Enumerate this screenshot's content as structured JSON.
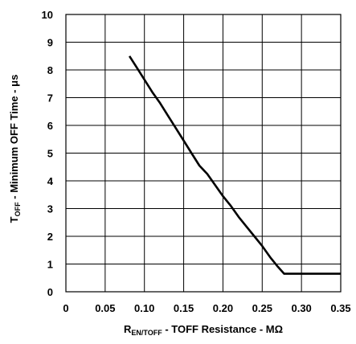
{
  "chart_data": {
    "type": "line",
    "xlabel": {
      "main": "R",
      "sub": "EN/TOFF",
      "rest": " - TOFF Resistance -  MΩ"
    },
    "ylabel": {
      "main": "T",
      "sub": "OFF",
      "rest": " - Minimum OFF Time - μs"
    },
    "xlim": [
      0,
      0.35
    ],
    "ylim": [
      0,
      10
    ],
    "x_ticks": [
      "0",
      "0.05",
      "0.10",
      "0.15",
      "0.20",
      "0.25",
      "0.30",
      "0.35"
    ],
    "x_tick_values": [
      0,
      0.05,
      0.1,
      0.15,
      0.2,
      0.25,
      0.3,
      0.35
    ],
    "y_ticks": [
      "0",
      "1",
      "2",
      "3",
      "4",
      "5",
      "6",
      "7",
      "8",
      "9",
      "10"
    ],
    "y_tick_values": [
      0,
      1,
      2,
      3,
      4,
      5,
      6,
      7,
      8,
      9,
      10
    ],
    "grid": true,
    "series": [
      {
        "x": [
          0.081,
          0.09,
          0.1,
          0.11,
          0.12,
          0.13,
          0.14,
          0.15,
          0.16,
          0.17,
          0.18,
          0.19,
          0.2,
          0.21,
          0.22,
          0.23,
          0.24,
          0.25,
          0.26,
          0.27,
          0.278,
          0.29,
          0.3,
          0.32,
          0.35
        ],
        "y": [
          8.5,
          8.1,
          7.65,
          7.2,
          6.8,
          6.35,
          5.9,
          5.45,
          5.0,
          4.55,
          4.25,
          3.85,
          3.45,
          3.1,
          2.7,
          2.35,
          2.0,
          1.65,
          1.25,
          0.9,
          0.65,
          0.65,
          0.65,
          0.65,
          0.65
        ]
      }
    ]
  }
}
